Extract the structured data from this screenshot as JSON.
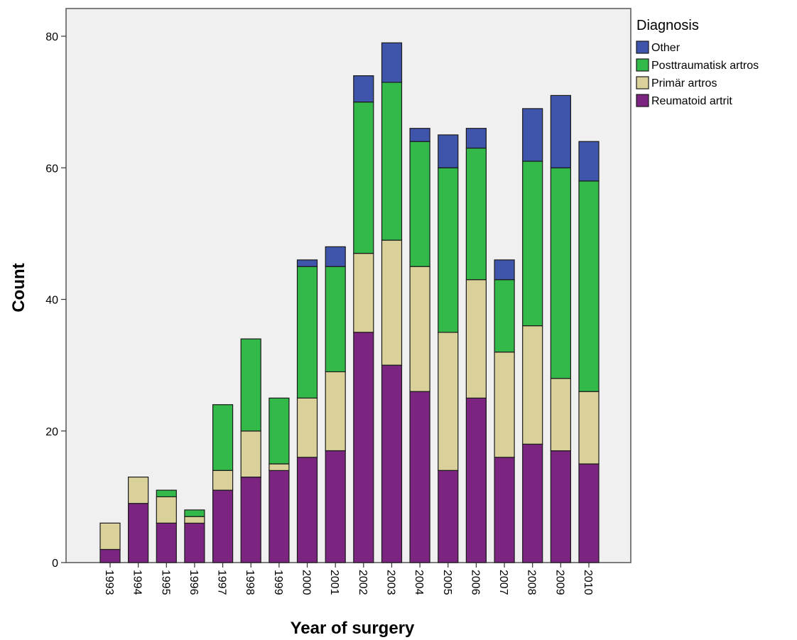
{
  "chart_data": {
    "type": "bar",
    "stacked": true,
    "title": "",
    "xlabel": "Year of surgery",
    "ylabel": "Count",
    "ylim": [
      0,
      85
    ],
    "yticks": [
      0,
      20,
      40,
      60,
      80
    ],
    "categories": [
      "1993",
      "1994",
      "1995",
      "1996",
      "1997",
      "1998",
      "1999",
      "2000",
      "2001",
      "2002",
      "2003",
      "2004",
      "2005",
      "2006",
      "2007",
      "2008",
      "2009",
      "2010"
    ],
    "series": [
      {
        "name": "Reumatoid artrit",
        "color": "#7b2580",
        "values": [
          2,
          9,
          6,
          6,
          11,
          13,
          14,
          16,
          17,
          35,
          30,
          26,
          14,
          25,
          16,
          18,
          17,
          15
        ]
      },
      {
        "name": "Primär artros",
        "color": "#d9d09a",
        "values": [
          4,
          4,
          4,
          1,
          3,
          7,
          1,
          9,
          12,
          12,
          19,
          19,
          21,
          18,
          16,
          18,
          11,
          11
        ]
      },
      {
        "name": "Posttraumatisk artros",
        "color": "#33b84a",
        "values": [
          0,
          0,
          1,
          1,
          10,
          14,
          10,
          20,
          16,
          23,
          24,
          19,
          25,
          20,
          11,
          25,
          32,
          32
        ]
      },
      {
        "name": "Other",
        "color": "#3f55ac",
        "values": [
          0,
          0,
          0,
          0,
          0,
          0,
          0,
          1,
          3,
          4,
          6,
          2,
          5,
          3,
          3,
          8,
          11,
          6
        ]
      }
    ],
    "legend": {
      "title": "Diagnosis",
      "position": "right",
      "order": [
        "Other",
        "Posttraumatisk artros",
        "Primär artros",
        "Reumatoid artrit"
      ]
    },
    "plot_background": "#f0f0f0",
    "grid": false
  }
}
